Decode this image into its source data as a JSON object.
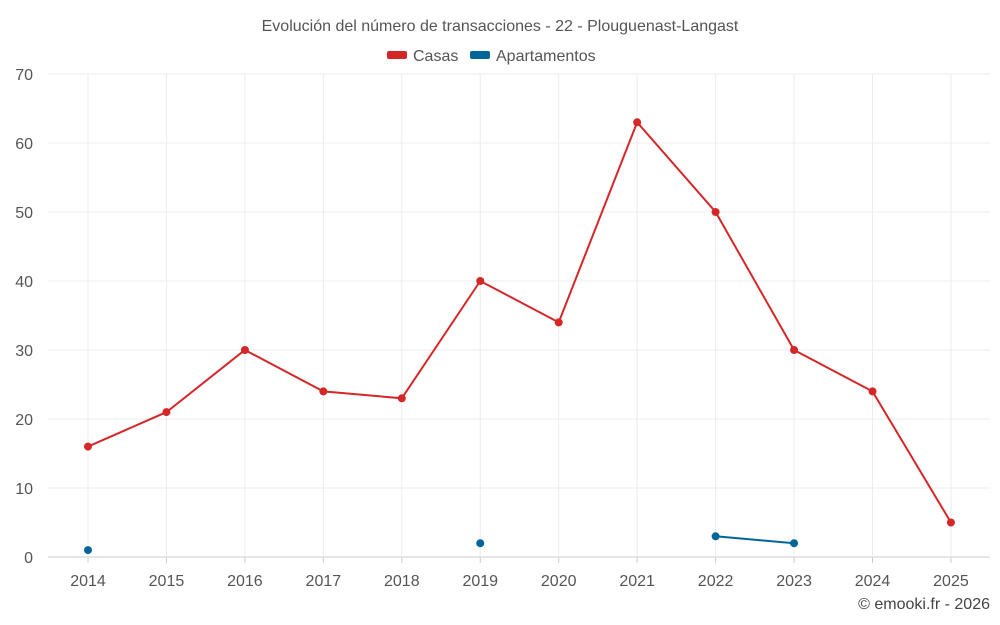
{
  "chart_data": {
    "type": "line",
    "title": "Evolución del número de transacciones - 22 - Plouguenast-Langast",
    "categories": [
      "2014",
      "2015",
      "2016",
      "2017",
      "2018",
      "2019",
      "2020",
      "2021",
      "2022",
      "2023",
      "2024",
      "2025"
    ],
    "ylim": [
      0,
      70
    ],
    "yticks": [
      0,
      10,
      20,
      30,
      40,
      50,
      60,
      70
    ],
    "grid": true,
    "legend_position": "top-center",
    "series": [
      {
        "name": "Casas",
        "color": "#d62728",
        "values": [
          16,
          21,
          30,
          24,
          23,
          40,
          34,
          63,
          50,
          30,
          24,
          5
        ]
      },
      {
        "name": "Apartamentos",
        "color": "#006699",
        "values": [
          1,
          null,
          null,
          null,
          null,
          2,
          null,
          null,
          3,
          2,
          null,
          null
        ]
      }
    ],
    "credit": "© emooki.fr - 2026"
  }
}
